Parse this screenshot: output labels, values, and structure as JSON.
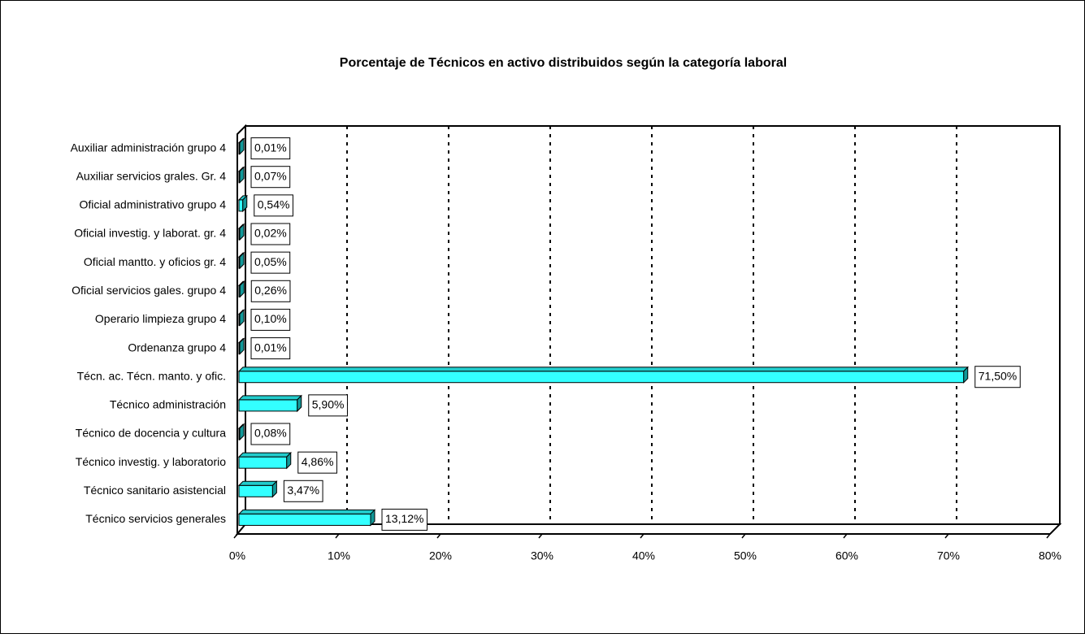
{
  "chart_data": {
    "type": "bar",
    "orientation": "horizontal",
    "title": "Porcentaje de Técnicos en activo distribuidos según la categoría laboral",
    "categories": [
      "Auxiliar administración grupo 4",
      "Auxiliar servicios grales. Gr. 4",
      "Oficial administrativo grupo 4",
      "Oficial investig. y laborat. gr. 4",
      "Oficial mantto. y oficios gr. 4",
      "Oficial servicios gales. grupo 4",
      "Operario limpieza grupo 4",
      "Ordenanza grupo 4",
      "Técn. ac. Técn. manto. y ofic.",
      "Técnico administración",
      "Técnico de docencia y cultura",
      "Técnico investig. y laboratorio",
      "Técnico sanitario asistencial",
      "Técnico servicios generales"
    ],
    "values": [
      0.01,
      0.07,
      0.54,
      0.02,
      0.05,
      0.26,
      0.1,
      0.01,
      71.5,
      5.9,
      0.08,
      4.86,
      3.47,
      13.12
    ],
    "value_labels": [
      "0,01%",
      "0,07%",
      "0,54%",
      "0,02%",
      "0,05%",
      "0,26%",
      "0,10%",
      "0,01%",
      "71,50%",
      "5,90%",
      "0,08%",
      "4,86%",
      "3,47%",
      "13,12%"
    ],
    "color": "#33ffff",
    "xlim": [
      0,
      80
    ],
    "xticks": [
      {
        "value": 0,
        "label": "0%"
      },
      {
        "value": 10,
        "label": "10%"
      },
      {
        "value": 20,
        "label": "20%"
      },
      {
        "value": 30,
        "label": "30%"
      },
      {
        "value": 40,
        "label": "40%"
      },
      {
        "value": 50,
        "label": "50%"
      },
      {
        "value": 60,
        "label": "60%"
      },
      {
        "value": 70,
        "label": "70%"
      },
      {
        "value": 80,
        "label": "80%"
      }
    ],
    "grid": true
  }
}
